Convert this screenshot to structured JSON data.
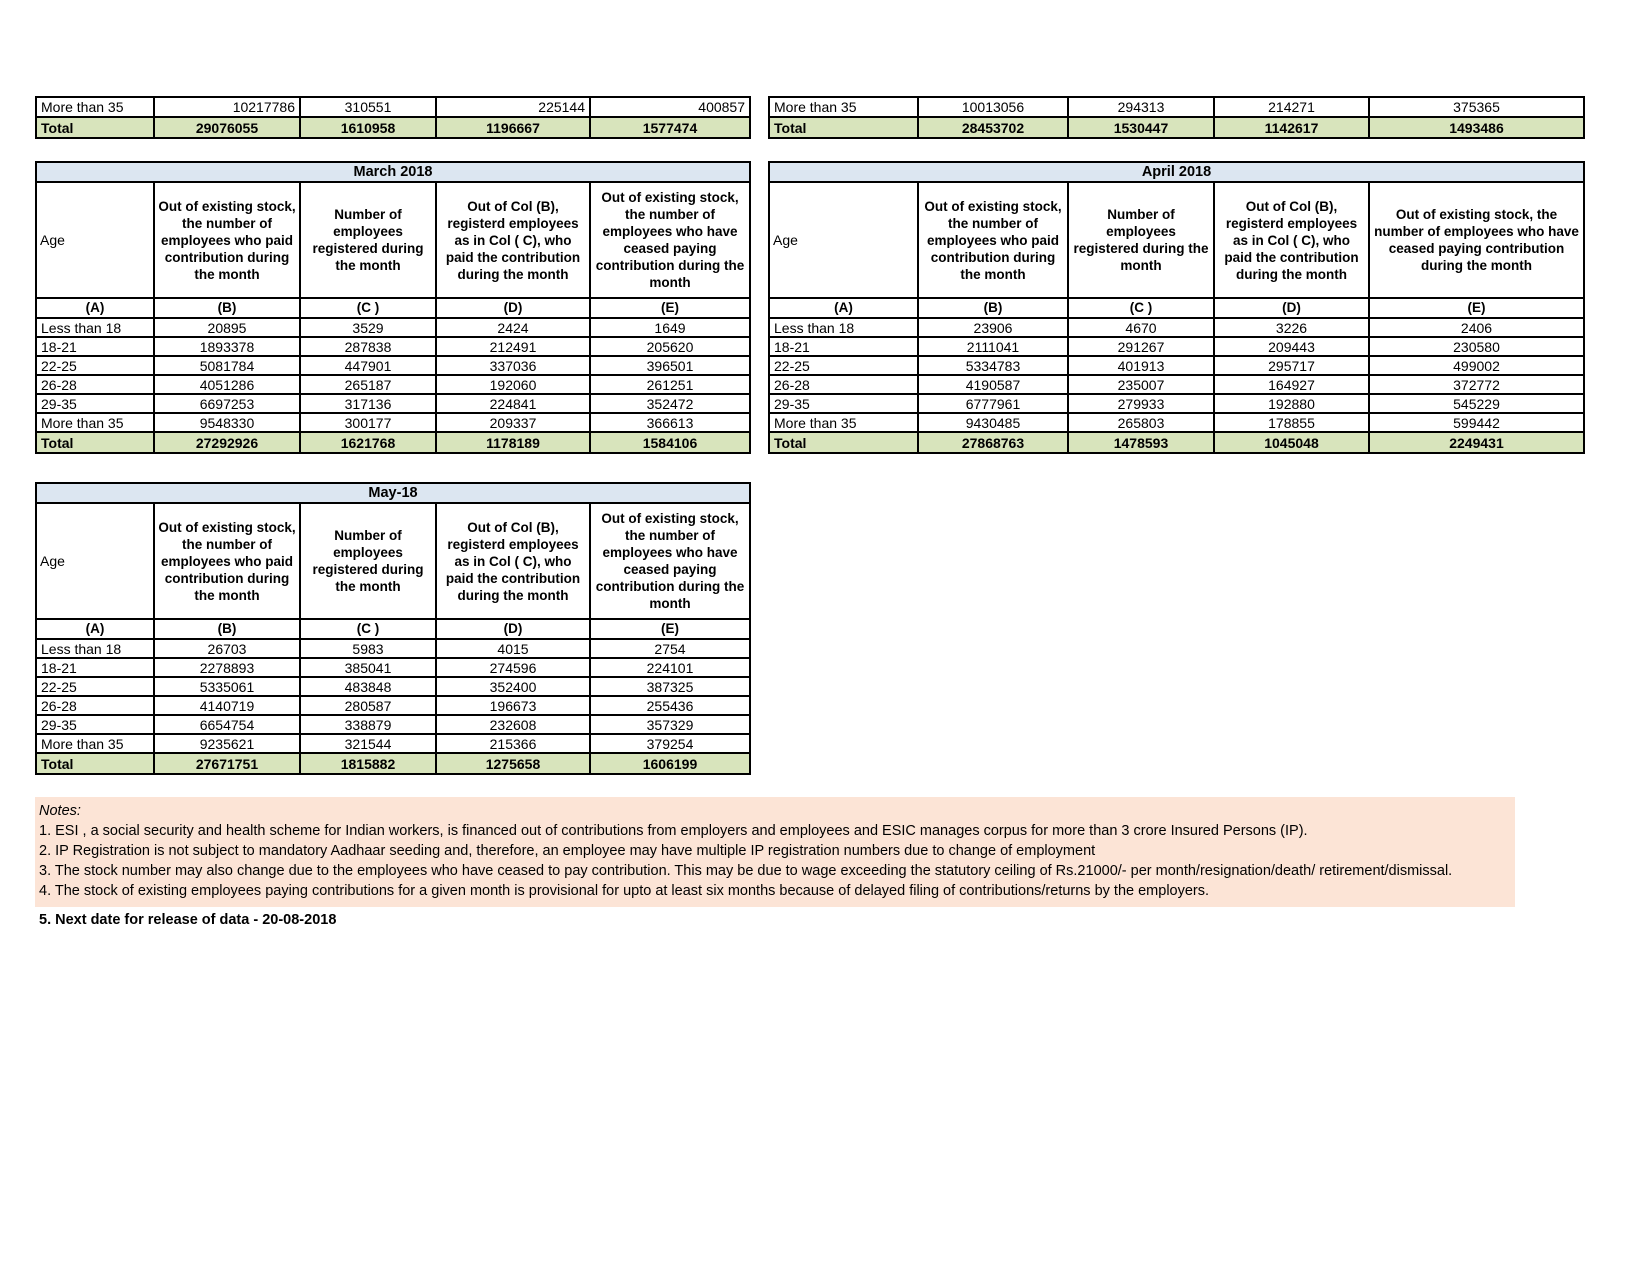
{
  "colors": {
    "title_bar_bg": "#dce6f1",
    "total_row_bg": "#d8e4bc",
    "notes_bg": "#fce4d6",
    "border": "#000000",
    "page_bg": "#ffffff"
  },
  "top_tables": {
    "left": {
      "rows": [
        [
          "More than 35",
          "10217786",
          "310551",
          "225144",
          "400857"
        ],
        [
          "Total",
          "29076055",
          "1610958",
          "1196667",
          "1577474"
        ]
      ]
    },
    "right": {
      "rows": [
        [
          "More than 35",
          "10013056",
          "294313",
          "214271",
          "375365"
        ],
        [
          "Total",
          "28453702",
          "1530447",
          "1142617",
          "1493486"
        ]
      ]
    }
  },
  "column_headers": {
    "age": "Age",
    "b": "Out of existing stock, the number of employees who paid contribution during the month",
    "c": "Number of employees registered during the month",
    "d": "Out of Col (B), registerd employees as in Col ( C), who paid the contribution during the month",
    "e": "Out of existing stock, the number of  employees who have ceased paying contribution during the month"
  },
  "column_letters": [
    "(A)",
    "(B)",
    "(C )",
    "(D)",
    "(E)"
  ],
  "month_tables": [
    {
      "title": "March 2018",
      "rows": [
        [
          "Less than 18",
          "20895",
          "3529",
          "2424",
          "1649"
        ],
        [
          "18-21",
          "1893378",
          "287838",
          "212491",
          "205620"
        ],
        [
          "22-25",
          "5081784",
          "447901",
          "337036",
          "396501"
        ],
        [
          "26-28",
          "4051286",
          "265187",
          "192060",
          "261251"
        ],
        [
          "29-35",
          "6697253",
          "317136",
          "224841",
          "352472"
        ],
        [
          "More than 35",
          "9548330",
          "300177",
          "209337",
          "366613"
        ],
        [
          "Total",
          "27292926",
          "1621768",
          "1178189",
          "1584106"
        ]
      ]
    },
    {
      "title": "April 2018",
      "rows": [
        [
          "Less than 18",
          "23906",
          "4670",
          "3226",
          "2406"
        ],
        [
          "18-21",
          "2111041",
          "291267",
          "209443",
          "230580"
        ],
        [
          "22-25",
          "5334783",
          "401913",
          "295717",
          "499002"
        ],
        [
          "26-28",
          "4190587",
          "235007",
          "164927",
          "372772"
        ],
        [
          "29-35",
          "6777961",
          "279933",
          "192880",
          "545229"
        ],
        [
          "More than 35",
          "9430485",
          "265803",
          "178855",
          "599442"
        ],
        [
          "Total",
          "27868763",
          "1478593",
          "1045048",
          "2249431"
        ]
      ]
    },
    {
      "title": "May-18",
      "rows": [
        [
          "Less than 18",
          "26703",
          "5983",
          "4015",
          "2754"
        ],
        [
          "18-21",
          "2278893",
          "385041",
          "274596",
          "224101"
        ],
        [
          "22-25",
          "5335061",
          "483848",
          "352400",
          "387325"
        ],
        [
          "26-28",
          "4140719",
          "280587",
          "196673",
          "255436"
        ],
        [
          "29-35",
          "6654754",
          "338879",
          "232608",
          "357329"
        ],
        [
          "More than 35",
          "9235621",
          "321544",
          "215366",
          "379254"
        ],
        [
          "Total",
          "27671751",
          "1815882",
          "1275658",
          "1606199"
        ]
      ]
    }
  ],
  "notes": {
    "label": "Notes:",
    "lines": [
      "1. ESI , a social security and health scheme for Indian workers, is financed out of contributions from employers and employees and ESIC manages corpus for more than 3 crore Insured Persons (IP).",
      "2. IP Registration is not subject to mandatory Aadhaar seeding and, therefore, an employee may have multiple IP registration numbers due to change of employment",
      "3. The stock number may also change due to the employees who have ceased to pay contribution. This may  be due to wage exceeding the statutory ceiling of  Rs.21000/- per month/resignation/death/ retirement/dismissal.",
      "4. The stock of existing employees paying contributions for a given month is provisional for upto at least six months because of delayed filing of contributions/returns by the employers."
    ],
    "release_line": "5. Next date for release of data - 20-08-2018"
  }
}
